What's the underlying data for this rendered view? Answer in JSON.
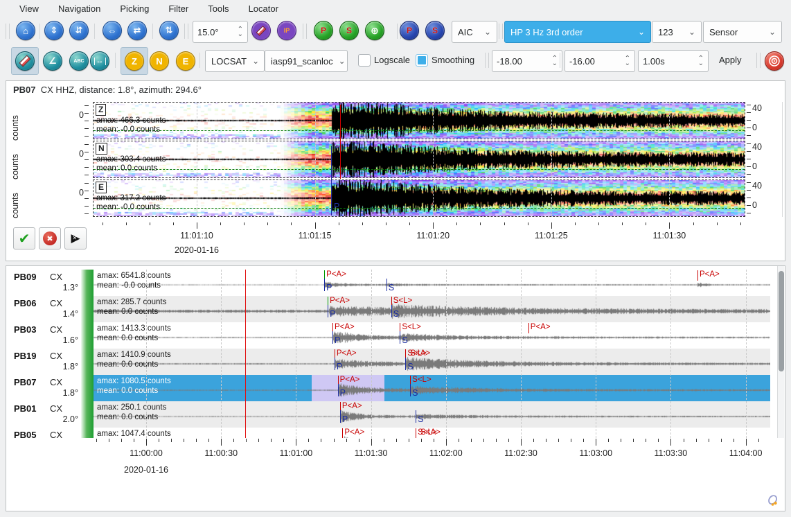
{
  "menu": {
    "items": [
      "View",
      "Navigation",
      "Picking",
      "Filter",
      "Tools",
      "Locator"
    ]
  },
  "toolbar1": {
    "angle": "15.0°",
    "picker": "AIC",
    "filter": "HP 3 Hz 3rd order",
    "scale": "123",
    "sensor": "Sensor",
    "p": "P",
    "s": "S",
    "ip": "IP"
  },
  "toolbar2": {
    "components": [
      "Z",
      "N",
      "E"
    ],
    "locator": "LOCSAT",
    "profile": "iasp91_scanloc",
    "logscale": "Logscale",
    "smoothing": "Smoothing",
    "spin1": "-18.00",
    "spin2": "-16.00",
    "spin3": "1.00s",
    "apply": "Apply",
    "abc": "ABC"
  },
  "top_panel": {
    "station": "PB07",
    "info": "CX  HHZ, distance: 1.8°, azimuth: 294.6°",
    "pick_p": "P",
    "traces": [
      {
        "channel": "Z",
        "amax": "amax: 466.3 counts",
        "mean": "mean: -0.0 counts",
        "ylabel": "counts",
        "y0": "0",
        "fmax": "40",
        "fmin": "0"
      },
      {
        "channel": "N",
        "amax": "amax: 303.4 counts",
        "mean": "mean: 0.0 counts",
        "ylabel": "counts",
        "y0": "0",
        "fmax": "40",
        "fmin": "0"
      },
      {
        "channel": "E",
        "amax": "amax: 317.2 counts",
        "mean": "mean: -0.0 counts",
        "ylabel": "counts",
        "y0": "0",
        "fmax": "40",
        "fmin": "0"
      }
    ],
    "axis": {
      "ticks": [
        "11:01:10",
        "11:01:15",
        "11:01:20",
        "11:01:25",
        "11:01:30"
      ],
      "date": "2020-01-16"
    }
  },
  "bottom_panel": {
    "rows": [
      {
        "station": "PB09",
        "network": "CX",
        "distance": "1.3°",
        "amax": "amax: 6541.8 counts",
        "mean": "mean: -0.0 counts",
        "selected": false,
        "picks": [
          {
            "t": 71.0,
            "line": "green",
            "label": "P<A>",
            "manual": "P"
          },
          {
            "t": 95.9,
            "manual": "S"
          },
          {
            "t": 220.4,
            "line": "red",
            "label": "P<A>"
          }
        ]
      },
      {
        "station": "PB06",
        "network": "CX",
        "distance": "1.4°",
        "amax": "amax: 285.7 counts",
        "mean": "mean: 0.0 counts",
        "selected": false,
        "picks": [
          {
            "t": 72.4,
            "line": "green",
            "label": "P<A>",
            "manual": "P"
          },
          {
            "t": 97.8,
            "line": "red",
            "label": "S<L>",
            "manual": "S"
          }
        ]
      },
      {
        "station": "PB03",
        "network": "CX",
        "distance": "1.6°",
        "amax": "amax: 1413.3 counts",
        "mean": "mean: 0.0 counts",
        "selected": false,
        "picks": [
          {
            "t": 74.3,
            "line": "red",
            "label": "P<A>",
            "manual": "P"
          },
          {
            "t": 101.3,
            "line": "red",
            "label": "S<L>",
            "manual": "S"
          },
          {
            "t": 152.7,
            "line": "red",
            "label": "P<A>"
          }
        ]
      },
      {
        "station": "PB19",
        "network": "CX",
        "distance": "1.8°",
        "amax": "amax: 1410.9 counts",
        "mean": "mean: 0.0 counts",
        "selected": false,
        "picks": [
          {
            "t": 75.1,
            "line": "red",
            "label": "P<A>",
            "manual": "P"
          },
          {
            "t": 103.5,
            "line": "red",
            "label": "S<L>",
            "label2": "S<A>",
            "manual": "S"
          }
        ]
      },
      {
        "station": "PB07",
        "network": "CX",
        "distance": "1.8°",
        "amax": "amax: 1080.5 counts",
        "mean": "mean: 0.0 counts",
        "selected": true,
        "picks": [
          {
            "t": 76.4,
            "line": "red",
            "label": "P<A>",
            "manual": "P"
          },
          {
            "t": 105.4,
            "line": "red",
            "label": "S<L>",
            "manual": "S"
          }
        ]
      },
      {
        "station": "PB01",
        "network": "CX",
        "distance": "2.0°",
        "amax": "amax: 250.1 counts",
        "mean": "mean: 0.0 counts",
        "selected": false,
        "picks": [
          {
            "t": 77.3,
            "line": "red",
            "label": "P<A>",
            "manual": "P"
          },
          {
            "t": 107.6,
            "manual": "S"
          }
        ]
      },
      {
        "station": "PB05",
        "network": "CX",
        "distance": "",
        "amax": "amax: 1047.4 counts",
        "mean": "",
        "selected": false,
        "picks": [
          {
            "t": 78.3,
            "line": "red",
            "label": "P<A>"
          },
          {
            "t": 107.6,
            "line": "red",
            "label": "S<L>",
            "label2": "S<A>"
          }
        ]
      }
    ],
    "axis": {
      "ticks": [
        "11:00:00",
        "11:00:30",
        "11:01:00",
        "11:01:30",
        "11:02:00",
        "11:02:30",
        "11:03:00",
        "11:03:30",
        "11:04:00"
      ],
      "date": "2020-01-16"
    }
  },
  "colors": {
    "accent": "#3daee9",
    "selection_row": "#3ba3dc",
    "selection_window": "#cfc8f4",
    "pick_auto": "#c80000",
    "pick_manual": "#1b2da0",
    "pick_green": "#009900",
    "origin_line": "#e01010"
  }
}
